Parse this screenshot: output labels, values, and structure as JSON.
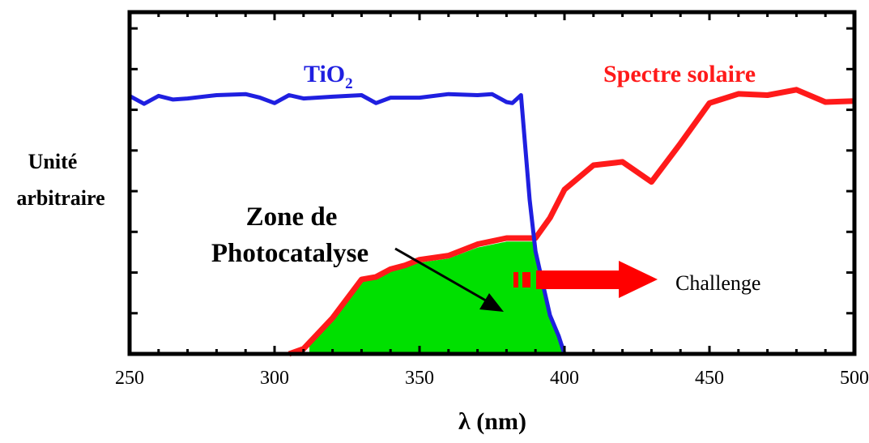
{
  "chart_data": {
    "type": "line",
    "xlabel": "λ (nm)",
    "ylabel_line1": "Unité",
    "ylabel_line2": "arbitraire",
    "xlim": [
      250,
      500
    ],
    "ylim": [
      0,
      100
    ],
    "x_ticks": [
      250,
      300,
      350,
      400,
      450,
      500
    ],
    "x_tick_labels": [
      "250",
      "300",
      "350",
      "400",
      "450",
      "500"
    ],
    "grid": false,
    "series": [
      {
        "name": "TiO2",
        "label_main": "TiO",
        "label_sub": "2",
        "color": "#1f1fe0",
        "x": [
          250,
          255,
          260,
          265,
          270,
          280,
          290,
          295,
          300,
          305,
          310,
          320,
          330,
          335,
          340,
          350,
          360,
          370,
          375,
          380,
          382,
          385,
          388,
          390,
          393,
          395,
          398,
          400
        ],
        "y": [
          100.5,
          97.4,
          100.5,
          99.1,
          99.5,
          100.8,
          101.2,
          99.8,
          97.7,
          100.8,
          99.5,
          100.2,
          100.8,
          97.7,
          99.8,
          99.8,
          101.2,
          100.8,
          101.2,
          98.1,
          97.7,
          100.8,
          60,
          40,
          25,
          15,
          7,
          0
        ]
      },
      {
        "name": "Spectre solaire",
        "color": "#ff1a1a",
        "x": [
          305,
          310,
          320,
          330,
          335,
          340,
          345,
          350,
          360,
          370,
          380,
          385,
          390,
          395,
          400,
          410,
          420,
          430,
          440,
          450,
          460,
          470,
          480,
          490,
          500
        ],
        "y": [
          0,
          2,
          14,
          29,
          30,
          33,
          34.5,
          36.7,
          38.3,
          42.7,
          45.1,
          45.1,
          45.1,
          53,
          64,
          73.5,
          74.8,
          67,
          82,
          97.7,
          101.3,
          100.8,
          102.9,
          98.1,
          98.5
        ]
      }
    ],
    "annotations": {
      "zone_line1": "Zone de",
      "zone_line2": "Photocatalyse",
      "challenge": "Challenge"
    },
    "colors": {
      "fill_zone": "#00e000",
      "arrow": "#ff0000",
      "axis": "#000000"
    }
  }
}
